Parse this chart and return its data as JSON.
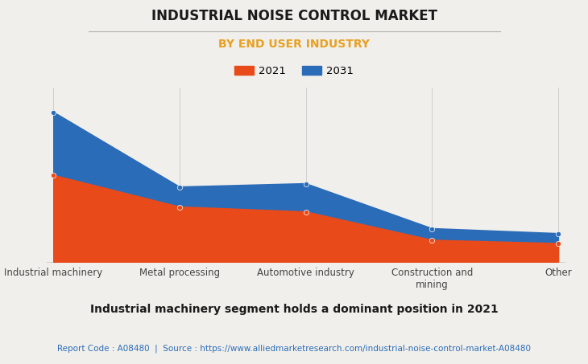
{
  "title": "INDUSTRIAL NOISE CONTROL MARKET",
  "subtitle": "BY END USER INDUSTRY",
  "categories": [
    "Industrial machinery",
    "Metal processing",
    "Automotive industry",
    "Construction and\nmining",
    "Other"
  ],
  "values_2021": [
    5.2,
    3.3,
    3.0,
    1.3,
    1.1
  ],
  "values_2031": [
    9.0,
    4.5,
    4.7,
    2.0,
    1.7
  ],
  "color_2021": "#E84A1A",
  "color_2031": "#2B6CB8",
  "bg_color": "#F0EFEB",
  "title_color": "#1a1a1a",
  "subtitle_color": "#E8A020",
  "legend_labels": [
    "2021",
    "2031"
  ],
  "footer_text": "Report Code : A08480  |  Source : https://www.alliedmarketresearch.com/industrial-noise-control-market-A08480",
  "bottom_title": "Industrial machinery segment holds a dominant position in 2021",
  "footer_color": "#2B6CB8",
  "bottom_title_color": "#1a1a1a",
  "grid_color": "#d0d0d0",
  "tick_color": "#444444"
}
